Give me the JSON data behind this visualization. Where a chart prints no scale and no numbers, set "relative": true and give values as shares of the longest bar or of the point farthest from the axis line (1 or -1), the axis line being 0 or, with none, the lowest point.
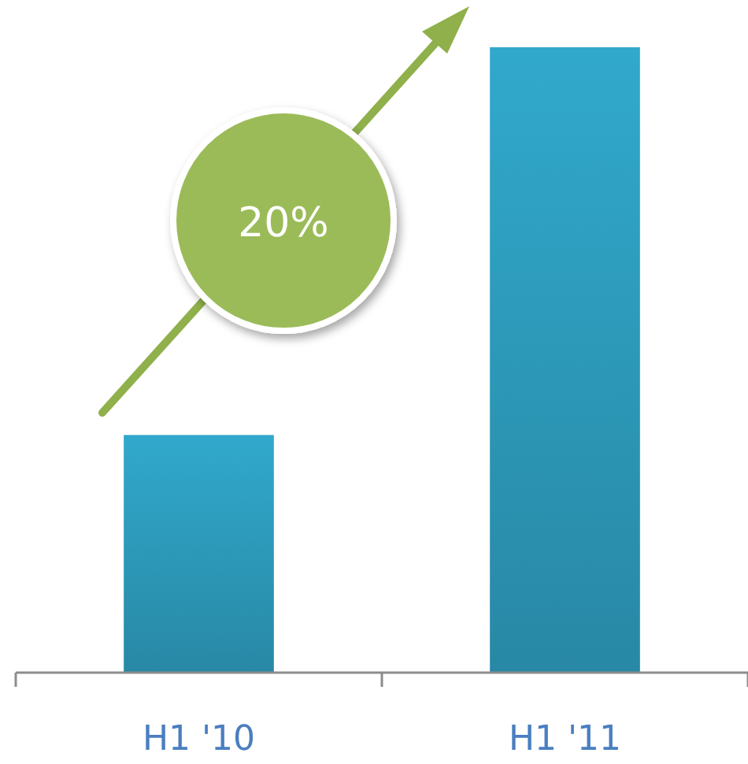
{
  "chart_data": {
    "type": "bar",
    "relative": true,
    "categories": [
      "H1 '10",
      "H1 '11"
    ],
    "values": [
      0.38,
      1
    ],
    "color": "#31a9cc",
    "annotations": [
      "20%"
    ]
  }
}
